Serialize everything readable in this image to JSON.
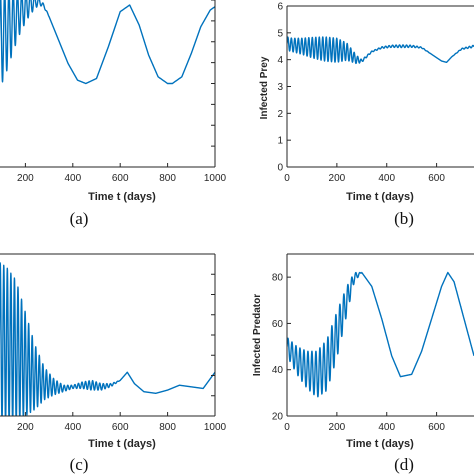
{
  "figure": {
    "line_color": "#0072BD",
    "axis_color": "#262626"
  },
  "chart_data": [
    {
      "type": "line",
      "panel": "a",
      "caption": "(a)",
      "xlabel": "Time t (days)",
      "ylabel": "",
      "xlim": [
        0,
        1000
      ],
      "ylim": [
        0,
        100
      ],
      "xticks": [
        200,
        400,
        600,
        800,
        1000
      ],
      "yticks": [],
      "series": [
        {
          "x": [
            0,
            30,
            60,
            90,
            120,
            150,
            180,
            210,
            240,
            260,
            280,
            300,
            340,
            380,
            420,
            455,
            500,
            550,
            600,
            640,
            680,
            720,
            760,
            800,
            820,
            860,
            900,
            940,
            980,
            1000
          ],
          "y": [
            60,
            64,
            70,
            76,
            82,
            88,
            93,
            97,
            99,
            99,
            96,
            90,
            76,
            62,
            52,
            50,
            53,
            72,
            93,
            97,
            85,
            67,
            54,
            50,
            50,
            54,
            68,
            84,
            94,
            96
          ],
          "amplitude": [
            40,
            38,
            35,
            30,
            25,
            18,
            12,
            8,
            4,
            2,
            1,
            0,
            0,
            0,
            0,
            0,
            0,
            0,
            0,
            0,
            0,
            0,
            0,
            0,
            0,
            0,
            0,
            0,
            0,
            0
          ],
          "period_days": 18
        }
      ]
    },
    {
      "type": "line",
      "panel": "b",
      "caption": "(b)",
      "xlabel": "Time t (days)",
      "ylabel": "Infected Prey",
      "xlim": [
        0,
        750
      ],
      "ylim": [
        0,
        6
      ],
      "xticks": [
        0,
        200,
        400,
        600
      ],
      "yticks": [
        0,
        1,
        2,
        3,
        4,
        5,
        6
      ],
      "series": [
        {
          "x": [
            0,
            20,
            60,
            100,
            150,
            200,
            240,
            280,
            300,
            340,
            380,
            420,
            460,
            500,
            540,
            580,
            620,
            640,
            660,
            700,
            750
          ],
          "y": [
            4.6,
            4.55,
            4.5,
            4.45,
            4.4,
            4.35,
            4.3,
            4.0,
            3.95,
            4.3,
            4.45,
            4.5,
            4.5,
            4.5,
            4.45,
            4.2,
            3.95,
            3.9,
            4.1,
            4.4,
            4.5
          ],
          "amplitude": [
            0.25,
            0.25,
            0.3,
            0.38,
            0.45,
            0.45,
            0.32,
            0.15,
            0.05,
            0.02,
            0.03,
            0.04,
            0.05,
            0.04,
            0.02,
            0.0,
            0.0,
            0.0,
            0.0,
            0.02,
            0.04
          ],
          "period_days": 14
        }
      ]
    },
    {
      "type": "line",
      "panel": "c",
      "caption": "(c)",
      "xlabel": "Time t (days)",
      "ylabel": "",
      "xlim": [
        0,
        1000
      ],
      "ylim": [
        0,
        100
      ],
      "xticks": [
        200,
        400,
        600,
        800,
        1000
      ],
      "yticks": [],
      "series": [
        {
          "x": [
            0,
            60,
            120,
            160,
            200,
            240,
            280,
            320,
            360,
            400,
            440,
            480,
            520,
            560,
            600,
            630,
            660,
            700,
            750,
            800,
            850,
            900,
            950,
            1000
          ],
          "y": [
            50,
            48,
            44,
            40,
            32,
            24,
            20,
            18,
            17,
            18,
            19,
            19,
            18,
            19,
            22,
            27,
            20,
            15,
            14,
            16,
            19,
            18,
            17,
            27
          ],
          "amplitude": [
            50,
            50,
            48,
            44,
            32,
            20,
            10,
            5,
            2,
            1,
            2,
            3,
            2,
            1,
            0,
            0,
            0,
            0,
            0,
            0,
            0,
            0,
            0,
            0
          ],
          "period_days": 15
        }
      ]
    },
    {
      "type": "line",
      "panel": "d",
      "caption": "(d)",
      "xlabel": "Time t (days)",
      "ylabel": "Infected Predator",
      "xlim": [
        0,
        750
      ],
      "ylim": [
        20,
        90
      ],
      "xticks": [
        0,
        200,
        400,
        600
      ],
      "yticks": [
        20,
        40,
        60,
        80
      ],
      "series": [
        {
          "x": [
            0,
            40,
            80,
            120,
            160,
            200,
            240,
            270,
            300,
            340,
            380,
            420,
            455,
            500,
            540,
            580,
            620,
            645,
            670,
            700,
            730,
            750
          ],
          "y": [
            50,
            44,
            40,
            38,
            42,
            55,
            70,
            80,
            82,
            76,
            62,
            46,
            37,
            38,
            48,
            62,
            76,
            82,
            78,
            66,
            54,
            46
          ],
          "amplitude": [
            4,
            6,
            8,
            10,
            11,
            10,
            6,
            2,
            0,
            0,
            0,
            0,
            0,
            0,
            0,
            0,
            0,
            0,
            0,
            0,
            0,
            0
          ],
          "period_days": 16
        }
      ]
    }
  ]
}
